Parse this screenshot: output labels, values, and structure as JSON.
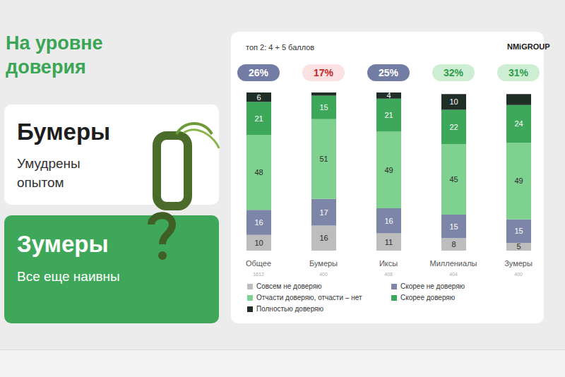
{
  "title": "На уровне доверия",
  "logo": "NMiGROUP",
  "cards": [
    {
      "title": "Бумеры",
      "text": "Умудрены опытом"
    },
    {
      "title": "Зумеры",
      "text": "Все еще наивны"
    }
  ],
  "chart_data": {
    "type": "bar",
    "stacked": true,
    "data_labels": true,
    "tick_labels": "x",
    "legend": "bottom",
    "subtitle": "топ 2: 4 + 5 баллов",
    "categories": [
      "Общее",
      "Бумеры",
      "Иксы",
      "Миллениалы",
      "Зумеры"
    ],
    "sample_sizes": [
      1612,
      400,
      408,
      404,
      400
    ],
    "top2": {
      "values": [
        26,
        17,
        25,
        32,
        31
      ],
      "value_labels": [
        "26%",
        "17%",
        "25%",
        "32%",
        "31%"
      ],
      "colors": [
        "#737ca3",
        "#fbe1e1",
        "#737ca3",
        "#cdeed3",
        "#cdeed3"
      ]
    },
    "series": [
      {
        "name": "Совсем не доверяю",
        "color": "#bdbdbd",
        "values": [
          10,
          16,
          11,
          8,
          5
        ]
      },
      {
        "name": "Скорее не доверяю",
        "color": "#7d86a8",
        "values": [
          16,
          17,
          16,
          15,
          15
        ]
      },
      {
        "name": "Отчасти доверяю, отчасти – нет",
        "color": "#7fd18f",
        "values": [
          48,
          51,
          49,
          45,
          49
        ]
      },
      {
        "name": "Скорее доверяю",
        "color": "#3da85a",
        "values": [
          21,
          15,
          21,
          22,
          24
        ]
      },
      {
        "name": "Полностью доверяю",
        "color": "#1f2e27",
        "values": [
          6,
          2,
          4,
          10,
          7
        ],
        "value_labels": [
          "6",
          null,
          "4",
          "10",
          null
        ]
      }
    ]
  }
}
